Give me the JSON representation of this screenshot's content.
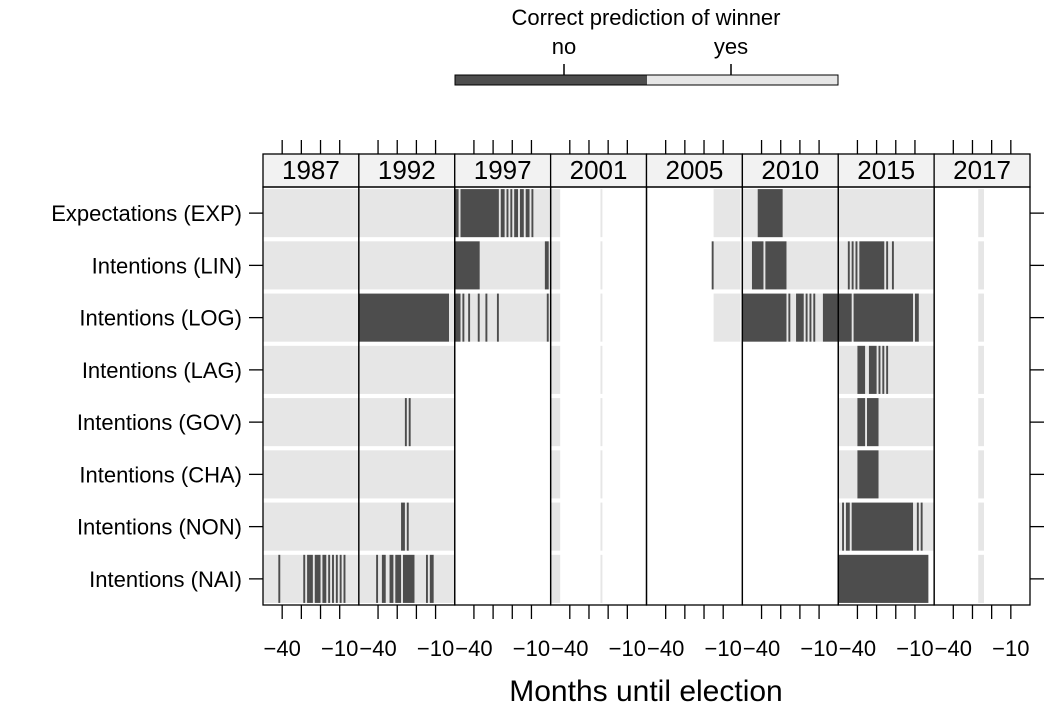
{
  "chart_data": {
    "type": "heatmap",
    "title": "",
    "xlabel": "Months until election",
    "ylabel": "",
    "xlim": [
      -50,
      0
    ],
    "x_ticks": [
      -40,
      -30,
      -20,
      -10
    ],
    "x_tick_labels": [
      "−40",
      "",
      "",
      "−10"
    ],
    "legend": {
      "title": "Correct prediction of winner",
      "placement": "top",
      "levels": [
        {
          "label": "no",
          "color": "#4d4d4d"
        },
        {
          "label": "yes",
          "color": "#e6e6e6"
        }
      ]
    },
    "methods": [
      "Expectations (EXP)",
      "Intentions (LIN)",
      "Intentions (LOG)",
      "Intentions (LAG)",
      "Intentions (GOV)",
      "Intentions (CHA)",
      "Intentions (NON)",
      "Intentions (NAI)"
    ],
    "panels": [
      {
        "year": "1987",
        "series": [
          {
            "method": "Expectations (EXP)",
            "yes": [
              [
                -50,
                0
              ]
            ],
            "no": []
          },
          {
            "method": "Intentions (LIN)",
            "yes": [
              [
                -50,
                0
              ]
            ],
            "no": []
          },
          {
            "method": "Intentions (LOG)",
            "yes": [
              [
                -50,
                0
              ]
            ],
            "no": []
          },
          {
            "method": "Intentions (LAG)",
            "yes": [
              [
                -50,
                0
              ]
            ],
            "no": []
          },
          {
            "method": "Intentions (GOV)",
            "yes": [
              [
                -50,
                0
              ]
            ],
            "no": []
          },
          {
            "method": "Intentions (CHA)",
            "yes": [
              [
                -50,
                0
              ]
            ],
            "no": []
          },
          {
            "method": "Intentions (NON)",
            "yes": [
              [
                -50,
                0
              ]
            ],
            "no": []
          },
          {
            "method": "Intentions (NAI)",
            "yes": [
              [
                -50,
                0
              ]
            ],
            "no": [
              [
                -42,
                -41
              ],
              [
                -29,
                -28
              ],
              [
                -27,
                -26
              ],
              [
                -26,
                -24
              ],
              [
                -23,
                -20
              ],
              [
                -19,
                -17
              ],
              [
                -16,
                -15
              ],
              [
                -14,
                -13
              ],
              [
                -12,
                -11
              ],
              [
                -10,
                -9
              ],
              [
                -8,
                -7
              ]
            ]
          }
        ]
      },
      {
        "year": "1992",
        "series": [
          {
            "method": "Expectations (EXP)",
            "yes": [
              [
                -50,
                0
              ]
            ],
            "no": []
          },
          {
            "method": "Intentions (LIN)",
            "yes": [
              [
                -50,
                0
              ]
            ],
            "no": []
          },
          {
            "method": "Intentions (LOG)",
            "yes": [
              [
                -50,
                0
              ]
            ],
            "no": [
              [
                -50,
                -3
              ]
            ]
          },
          {
            "method": "Intentions (LAG)",
            "yes": [
              [
                -50,
                0
              ]
            ],
            "no": []
          },
          {
            "method": "Intentions (GOV)",
            "yes": [
              [
                -50,
                0
              ]
            ],
            "no": [
              [
                -26,
                -25
              ],
              [
                -24,
                -23
              ]
            ]
          },
          {
            "method": "Intentions (CHA)",
            "yes": [
              [
                -50,
                0
              ]
            ],
            "no": []
          },
          {
            "method": "Intentions (NON)",
            "yes": [
              [
                -50,
                0
              ]
            ],
            "no": [
              [
                -28,
                -26
              ],
              [
                -25,
                -24
              ]
            ]
          },
          {
            "method": "Intentions (NAI)",
            "yes": [
              [
                -50,
                0
              ]
            ],
            "no": [
              [
                -41,
                -40
              ],
              [
                -38,
                -36
              ],
              [
                -34,
                -32
              ],
              [
                -31,
                -28
              ],
              [
                -27,
                -21
              ],
              [
                -15,
                -14
              ],
              [
                -13,
                -11
              ]
            ]
          }
        ]
      },
      {
        "year": "1997",
        "series": [
          {
            "method": "Expectations (EXP)",
            "yes": [
              [
                -50,
                0
              ]
            ],
            "no": [
              [
                -50,
                -48
              ],
              [
                -47,
                -27
              ],
              [
                -26,
                -24
              ],
              [
                -23,
                -22
              ],
              [
                -21,
                -20
              ],
              [
                -19,
                -17
              ],
              [
                -16,
                -14
              ],
              [
                -13,
                -11
              ],
              [
                -10,
                -9
              ]
            ]
          },
          {
            "method": "Intentions (LIN)",
            "yes": [
              [
                -50,
                0
              ]
            ],
            "no": [
              [
                -50,
                -37
              ],
              [
                -3,
                -1
              ]
            ]
          },
          {
            "method": "Intentions (LOG)",
            "yes": [
              [
                -50,
                0
              ]
            ],
            "no": [
              [
                -50,
                -47
              ],
              [
                -46,
                -45
              ],
              [
                -43,
                -42
              ],
              [
                -38,
                -37
              ],
              [
                -34,
                -33
              ],
              [
                -28,
                -27
              ],
              [
                -2,
                -1
              ]
            ]
          },
          {
            "method": "Intentions (LAG)",
            "yes": [],
            "no": []
          },
          {
            "method": "Intentions (GOV)",
            "yes": [],
            "no": []
          },
          {
            "method": "Intentions (CHA)",
            "yes": [],
            "no": []
          },
          {
            "method": "Intentions (NON)",
            "yes": [],
            "no": []
          },
          {
            "method": "Intentions (NAI)",
            "yes": [],
            "no": []
          }
        ]
      },
      {
        "year": "2001",
        "series": [
          {
            "method": "Expectations (EXP)",
            "yes": [
              [
                -50,
                -45
              ],
              [
                -24,
                -23
              ]
            ],
            "no": []
          },
          {
            "method": "Intentions (LIN)",
            "yes": [
              [
                -50,
                -45
              ],
              [
                -24,
                -23
              ]
            ],
            "no": []
          },
          {
            "method": "Intentions (LOG)",
            "yes": [
              [
                -50,
                -45
              ],
              [
                -24,
                -23
              ]
            ],
            "no": []
          },
          {
            "method": "Intentions (LAG)",
            "yes": [
              [
                -50,
                -45
              ],
              [
                -24,
                -23
              ]
            ],
            "no": []
          },
          {
            "method": "Intentions (GOV)",
            "yes": [
              [
                -50,
                -45
              ],
              [
                -24,
                -23
              ]
            ],
            "no": []
          },
          {
            "method": "Intentions (CHA)",
            "yes": [
              [
                -50,
                -45
              ],
              [
                -24,
                -23
              ]
            ],
            "no": []
          },
          {
            "method": "Intentions (NON)",
            "yes": [
              [
                -50,
                -45
              ],
              [
                -24,
                -23
              ]
            ],
            "no": []
          },
          {
            "method": "Intentions (NAI)",
            "yes": [
              [
                -50,
                -45
              ],
              [
                -24,
                -23
              ]
            ],
            "no": []
          }
        ]
      },
      {
        "year": "2005",
        "series": [
          {
            "method": "Expectations (EXP)",
            "yes": [
              [
                -15,
                -1
              ]
            ],
            "no": []
          },
          {
            "method": "Intentions (LIN)",
            "yes": [
              [
                -15,
                -1
              ]
            ],
            "no": [
              [
                -16,
                -15
              ]
            ]
          },
          {
            "method": "Intentions (LOG)",
            "yes": [
              [
                -15,
                -1
              ]
            ],
            "no": []
          },
          {
            "method": "Intentions (LAG)",
            "yes": [],
            "no": []
          },
          {
            "method": "Intentions (GOV)",
            "yes": [],
            "no": []
          },
          {
            "method": "Intentions (CHA)",
            "yes": [],
            "no": []
          },
          {
            "method": "Intentions (NON)",
            "yes": [],
            "no": []
          },
          {
            "method": "Intentions (NAI)",
            "yes": [],
            "no": []
          }
        ]
      },
      {
        "year": "2010",
        "series": [
          {
            "method": "Expectations (EXP)",
            "yes": [
              [
                -50,
                0
              ]
            ],
            "no": [
              [
                -42,
                -29
              ]
            ]
          },
          {
            "method": "Intentions (LIN)",
            "yes": [
              [
                -50,
                0
              ]
            ],
            "no": [
              [
                -45,
                -39
              ],
              [
                -38,
                -27
              ]
            ]
          },
          {
            "method": "Intentions (LOG)",
            "yes": [
              [
                -50,
                0
              ]
            ],
            "no": [
              [
                -50,
                -27
              ],
              [
                -26,
                -25
              ],
              [
                -22,
                -18
              ],
              [
                -17,
                -16
              ],
              [
                -15,
                -14
              ],
              [
                -13,
                -12
              ],
              [
                -8,
                0
              ]
            ]
          },
          {
            "method": "Intentions (LAG)",
            "yes": [],
            "no": []
          },
          {
            "method": "Intentions (GOV)",
            "yes": [],
            "no": []
          },
          {
            "method": "Intentions (CHA)",
            "yes": [],
            "no": []
          },
          {
            "method": "Intentions (NON)",
            "yes": [],
            "no": []
          },
          {
            "method": "Intentions (NAI)",
            "yes": [],
            "no": []
          }
        ]
      },
      {
        "year": "2015",
        "series": [
          {
            "method": "Expectations (EXP)",
            "yes": [
              [
                -50,
                0
              ]
            ],
            "no": []
          },
          {
            "method": "Intentions (LIN)",
            "yes": [
              [
                -50,
                0
              ]
            ],
            "no": [
              [
                -45,
                -44
              ],
              [
                -43,
                -42
              ],
              [
                -41,
                -40
              ],
              [
                -39,
                -26
              ],
              [
                -25,
                -24
              ],
              [
                -22,
                -21
              ]
            ]
          },
          {
            "method": "Intentions (LOG)",
            "yes": [
              [
                -50,
                0
              ]
            ],
            "no": [
              [
                -50,
                -43
              ],
              [
                -42,
                -11
              ],
              [
                -10,
                -8
              ]
            ]
          },
          {
            "method": "Intentions (LAG)",
            "yes": [
              [
                -50,
                0
              ]
            ],
            "no": [
              [
                -40,
                -36
              ],
              [
                -34,
                -30
              ],
              [
                -29,
                -28
              ],
              [
                -27,
                -26
              ],
              [
                -25,
                -24
              ]
            ]
          },
          {
            "method": "Intentions (GOV)",
            "yes": [
              [
                -50,
                0
              ]
            ],
            "no": [
              [
                -40,
                -36
              ],
              [
                -35,
                -29
              ]
            ]
          },
          {
            "method": "Intentions (CHA)",
            "yes": [
              [
                -50,
                0
              ]
            ],
            "no": [
              [
                -40,
                -29
              ]
            ]
          },
          {
            "method": "Intentions (NON)",
            "yes": [
              [
                -50,
                0
              ]
            ],
            "no": [
              [
                -48,
                -47
              ],
              [
                -46,
                -44
              ],
              [
                -43,
                -11
              ],
              [
                -9,
                -8
              ],
              [
                -7,
                -6
              ]
            ]
          },
          {
            "method": "Intentions (NAI)",
            "yes": [
              [
                -50,
                -3
              ]
            ],
            "no": [
              [
                -50,
                -3
              ]
            ]
          }
        ]
      },
      {
        "year": "2017",
        "series": [
          {
            "method": "Expectations (EXP)",
            "yes": [
              [
                -27,
                -24
              ]
            ],
            "no": []
          },
          {
            "method": "Intentions (LIN)",
            "yes": [
              [
                -27,
                -24
              ]
            ],
            "no": []
          },
          {
            "method": "Intentions (LOG)",
            "yes": [
              [
                -27,
                -24
              ]
            ],
            "no": []
          },
          {
            "method": "Intentions (LAG)",
            "yes": [
              [
                -27,
                -24
              ]
            ],
            "no": []
          },
          {
            "method": "Intentions (GOV)",
            "yes": [
              [
                -27,
                -24
              ]
            ],
            "no": []
          },
          {
            "method": "Intentions (CHA)",
            "yes": [
              [
                -27,
                -24
              ]
            ],
            "no": []
          },
          {
            "method": "Intentions (NON)",
            "yes": [
              [
                -27,
                -24
              ]
            ],
            "no": []
          },
          {
            "method": "Intentions (NAI)",
            "yes": [
              [
                -27,
                -24
              ]
            ],
            "no": []
          }
        ]
      }
    ]
  }
}
